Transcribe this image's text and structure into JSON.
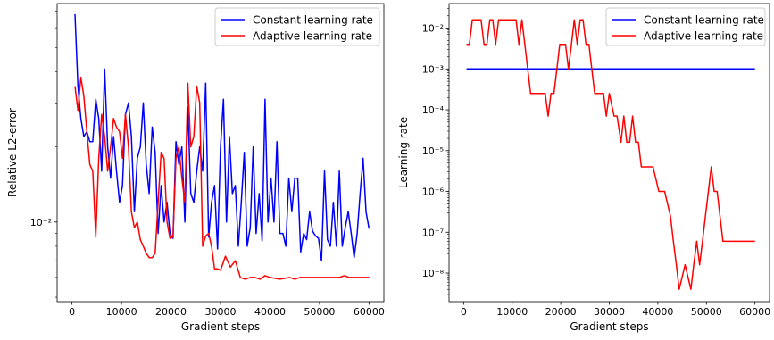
{
  "colors": {
    "constant": "#0000ff",
    "adaptive": "#ff0000",
    "axis": "#000000",
    "legend_border": "#cccccc"
  },
  "chart_data": [
    {
      "type": "line",
      "xlabel": "Gradient steps",
      "ylabel": "Relative L2-error",
      "xlim": [
        -3000,
        63000
      ],
      "ylim": [
        0.0048,
        0.075
      ],
      "yscale": "log",
      "grid": false,
      "legend_position": "upper right",
      "xticks": [
        0,
        10000,
        20000,
        30000,
        40000,
        50000,
        60000
      ],
      "xtick_labels": [
        "0",
        "10000",
        "20000",
        "30000",
        "40000",
        "50000",
        "60000"
      ],
      "yticks": [
        0.01
      ],
      "ytick_labels": [
        "10⁻²"
      ],
      "series": [
        {
          "name": "Constant learning rate",
          "color": "#0000ff",
          "x": [
            600,
            1200,
            1800,
            2400,
            3000,
            3600,
            4200,
            4800,
            5400,
            6000,
            6600,
            7200,
            7800,
            8400,
            9000,
            9600,
            10200,
            10800,
            11400,
            12000,
            12600,
            13200,
            13800,
            14400,
            15000,
            15600,
            16200,
            16800,
            17400,
            18000,
            18600,
            19200,
            19800,
            20400,
            21000,
            21600,
            22200,
            22800,
            23400,
            24000,
            24600,
            25200,
            25800,
            26400,
            27000,
            27600,
            28200,
            28800,
            29400,
            30000,
            30600,
            31200,
            31800,
            32400,
            33000,
            33600,
            34200,
            34800,
            35400,
            36000,
            36600,
            37200,
            37800,
            38400,
            39000,
            39600,
            40200,
            40800,
            41400,
            42000,
            42600,
            43200,
            43800,
            44400,
            45000,
            45600,
            46200,
            46800,
            47400,
            48000,
            48600,
            49200,
            49800,
            50400,
            51000,
            51600,
            52200,
            52800,
            53400,
            54000,
            54600,
            55200,
            55800,
            56400,
            57000,
            57600,
            58200,
            58800,
            59400,
            60000
          ],
          "y": [
            0.068,
            0.035,
            0.026,
            0.022,
            0.023,
            0.021,
            0.021,
            0.031,
            0.026,
            0.016,
            0.041,
            0.02,
            0.015,
            0.022,
            0.016,
            0.012,
            0.014,
            0.027,
            0.03,
            0.022,
            0.011,
            0.018,
            0.02,
            0.03,
            0.017,
            0.013,
            0.024,
            0.019,
            0.009,
            0.014,
            0.01,
            0.012,
            0.009,
            0.0086,
            0.021,
            0.017,
            0.02,
            0.01,
            0.029,
            0.013,
            0.012,
            0.016,
            0.02,
            0.016,
            0.036,
            0.0087,
            0.012,
            0.014,
            0.0078,
            0.02,
            0.031,
            0.01,
            0.022,
            0.013,
            0.014,
            0.008,
            0.012,
            0.019,
            0.008,
            0.0095,
            0.02,
            0.009,
            0.013,
            0.0084,
            0.031,
            0.01,
            0.015,
            0.01,
            0.021,
            0.009,
            0.009,
            0.008,
            0.015,
            0.011,
            0.015,
            0.015,
            0.0076,
            0.009,
            0.0085,
            0.011,
            0.0092,
            0.0088,
            0.0086,
            0.007,
            0.016,
            0.0085,
            0.008,
            0.012,
            0.008,
            0.016,
            0.008,
            0.0095,
            0.011,
            0.009,
            0.0072,
            0.009,
            0.013,
            0.018,
            0.011,
            0.0094
          ]
        },
        {
          "name": "Adaptive learning rate",
          "color": "#ff0000",
          "x": [
            600,
            1200,
            1800,
            2400,
            3000,
            3600,
            4200,
            4800,
            5400,
            6000,
            6600,
            7200,
            7800,
            8400,
            9000,
            9600,
            10200,
            10800,
            11400,
            12000,
            12600,
            13200,
            13800,
            14400,
            15000,
            15600,
            16200,
            16800,
            17400,
            18000,
            18600,
            19200,
            19800,
            20400,
            21000,
            21600,
            22200,
            22800,
            23400,
            24000,
            24600,
            25200,
            25800,
            26400,
            27000,
            27600,
            28200,
            28800,
            29400,
            30000,
            31000,
            32000,
            33000,
            34000,
            35000,
            36000,
            37000,
            38000,
            39000,
            40000,
            42000,
            44000,
            45000,
            46000,
            48000,
            50000,
            52000,
            54000,
            55000,
            56000,
            58000,
            60000
          ],
          "y": [
            0.035,
            0.028,
            0.038,
            0.032,
            0.023,
            0.017,
            0.016,
            0.0087,
            0.018,
            0.027,
            0.022,
            0.016,
            0.02,
            0.026,
            0.024,
            0.023,
            0.018,
            0.027,
            0.02,
            0.011,
            0.0095,
            0.01,
            0.0085,
            0.008,
            0.0075,
            0.0072,
            0.0072,
            0.0075,
            0.012,
            0.019,
            0.018,
            0.01,
            0.0086,
            0.0087,
            0.018,
            0.02,
            0.015,
            0.012,
            0.036,
            0.02,
            0.022,
            0.035,
            0.03,
            0.008,
            0.0088,
            0.009,
            0.008,
            0.0065,
            0.0065,
            0.0064,
            0.0073,
            0.0066,
            0.007,
            0.006,
            0.0059,
            0.006,
            0.006,
            0.0059,
            0.0061,
            0.006,
            0.0059,
            0.006,
            0.0059,
            0.006,
            0.006,
            0.006,
            0.006,
            0.006,
            0.0061,
            0.006,
            0.006,
            0.006
          ]
        }
      ]
    },
    {
      "type": "line",
      "xlabel": "Gradient steps",
      "ylabel": "Learning rate",
      "xlim": [
        -3000,
        63000
      ],
      "ylim": [
        2e-09,
        0.04
      ],
      "yscale": "log",
      "grid": false,
      "legend_position": "upper right",
      "xticks": [
        0,
        10000,
        20000,
        30000,
        40000,
        50000,
        60000
      ],
      "xtick_labels": [
        "0",
        "10000",
        "20000",
        "30000",
        "40000",
        "50000",
        "60000"
      ],
      "yticks": [
        1e-08,
        1e-07,
        1e-06,
        1e-05,
        0.0001,
        0.001,
        0.01
      ],
      "ytick_labels": [
        "10⁻⁸",
        "10⁻⁷",
        "10⁻⁶",
        "10⁻⁵",
        "10⁻⁴",
        "10⁻³",
        "10⁻²"
      ],
      "series": [
        {
          "name": "Constant learning rate",
          "color": "#0000ff",
          "x": [
            600,
            60000
          ],
          "y": [
            0.001,
            0.001
          ]
        },
        {
          "name": "Adaptive learning rate",
          "color": "#ff0000",
          "x": [
            600,
            1200,
            1800,
            2400,
            3000,
            3600,
            4200,
            4800,
            5400,
            6000,
            6600,
            7200,
            8400,
            9600,
            10800,
            11400,
            12000,
            12600,
            13200,
            13800,
            14400,
            15600,
            16800,
            17400,
            18000,
            18600,
            19200,
            19800,
            20400,
            21000,
            21600,
            22200,
            22800,
            23400,
            24000,
            24600,
            25200,
            25800,
            26400,
            27000,
            27600,
            28200,
            28800,
            29400,
            30000,
            31000,
            31600,
            32400,
            33000,
            33600,
            34200,
            34800,
            35400,
            36000,
            36600,
            37200,
            37800,
            38400,
            39000,
            40200,
            41400,
            42600,
            43200,
            43800,
            44400,
            45600,
            46800,
            47400,
            48000,
            48600,
            49200,
            49800,
            50400,
            51000,
            51600,
            52200,
            52800,
            53400,
            54000,
            54600,
            55200,
            55800,
            56400,
            57000,
            57600,
            58200,
            58800,
            59400,
            60000
          ],
          "y": [
            0.004,
            0.004,
            0.016,
            0.016,
            0.016,
            0.016,
            0.004,
            0.004,
            0.016,
            0.016,
            0.004,
            0.016,
            0.016,
            0.016,
            0.016,
            0.004,
            0.016,
            0.004,
            0.001,
            0.00025,
            0.00025,
            0.00025,
            0.00025,
            7e-05,
            0.00025,
            0.00025,
            0.001,
            0.004,
            0.004,
            0.004,
            0.001,
            0.004,
            0.016,
            0.004,
            0.016,
            0.016,
            0.004,
            0.004,
            0.001,
            0.00025,
            0.00025,
            0.00025,
            0.00025,
            7e-05,
            0.00025,
            7e-05,
            7e-05,
            1.6e-05,
            7e-05,
            1.6e-05,
            1.6e-05,
            7e-05,
            1.6e-05,
            1.6e-05,
            4e-06,
            4e-06,
            4e-06,
            4e-06,
            4e-06,
            1e-06,
            1e-06,
            2.5e-07,
            6e-08,
            1.6e-08,
            4e-09,
            1.6e-08,
            4e-09,
            1.6e-08,
            6e-08,
            1.6e-08,
            6e-08,
            2.5e-07,
            1e-06,
            4e-06,
            1e-06,
            1e-06,
            2.5e-07,
            6e-08,
            6e-08,
            6e-08,
            6e-08,
            6e-08,
            6e-08,
            6e-08,
            6e-08,
            6e-08,
            6e-08,
            6e-08,
            6e-08
          ]
        }
      ]
    }
  ]
}
